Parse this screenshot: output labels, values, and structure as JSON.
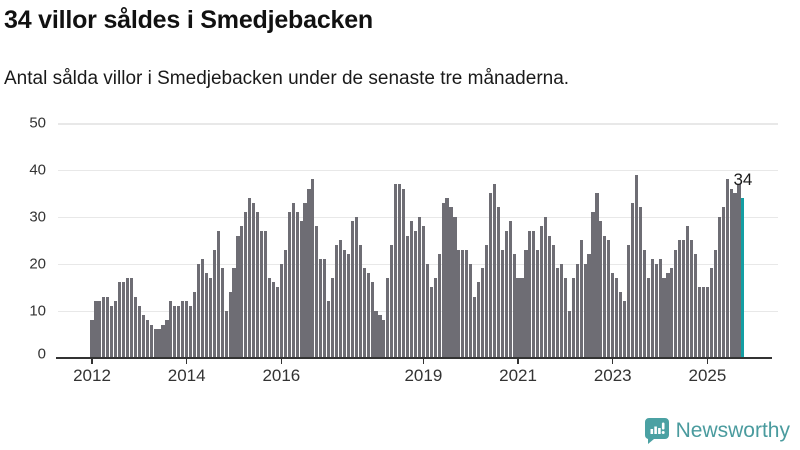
{
  "header": {
    "title": "34 villor såldes i Smedjebacken",
    "subtitle": "Antal sålda villor i Smedjebacken under de senaste tre månaderna."
  },
  "chart_data": {
    "type": "bar",
    "title": "34 villor såldes i Smedjebacken",
    "xlabel": "",
    "ylabel": "",
    "ylim": [
      0,
      50
    ],
    "y_ticks": [
      0,
      10,
      20,
      30,
      40,
      50
    ],
    "grid": true,
    "start_year": 2012,
    "x_tick_years": [
      2012,
      2014,
      2016,
      2019,
      2021,
      2023,
      2025
    ],
    "values": [
      8,
      12,
      12,
      13,
      13,
      11,
      12,
      16,
      16,
      17,
      17,
      13,
      11,
      9,
      8,
      7,
      6,
      6,
      7,
      8,
      12,
      11,
      11,
      12,
      12,
      11,
      14,
      20,
      21,
      18,
      17,
      23,
      27,
      19,
      10,
      14,
      19,
      26,
      28,
      31,
      34,
      33,
      31,
      27,
      27,
      17,
      16,
      15,
      20,
      23,
      31,
      33,
      31,
      29,
      33,
      36,
      38,
      28,
      21,
      21,
      12,
      17,
      24,
      25,
      23,
      22,
      29,
      30,
      24,
      19,
      18,
      16,
      10,
      9,
      8,
      17,
      24,
      37,
      37,
      36,
      26,
      29,
      27,
      30,
      28,
      20,
      15,
      17,
      22,
      33,
      34,
      32,
      30,
      23,
      23,
      23,
      20,
      13,
      16,
      19,
      24,
      35,
      37,
      32,
      23,
      27,
      29,
      22,
      17,
      17,
      23,
      27,
      27,
      23,
      28,
      30,
      26,
      24,
      19,
      20,
      17,
      10,
      17,
      20,
      25,
      20,
      22,
      31,
      35,
      29,
      26,
      25,
      18,
      17,
      14,
      12,
      24,
      33,
      39,
      32,
      23,
      17,
      21,
      20,
      21,
      17,
      18,
      19,
      23,
      25,
      25,
      28,
      25,
      22,
      15,
      15,
      15,
      19,
      23,
      30,
      32,
      38,
      36,
      35,
      37,
      34
    ],
    "highlight_index": 165,
    "annotation": {
      "text": "34"
    },
    "colors": {
      "bar": "#6e6d74",
      "highlight": "#149ea3",
      "grid": "#e8e8e8",
      "axis": "#333333",
      "annotation": "#1a1a1a"
    }
  },
  "footer": {
    "brand": "Newsworthy"
  }
}
